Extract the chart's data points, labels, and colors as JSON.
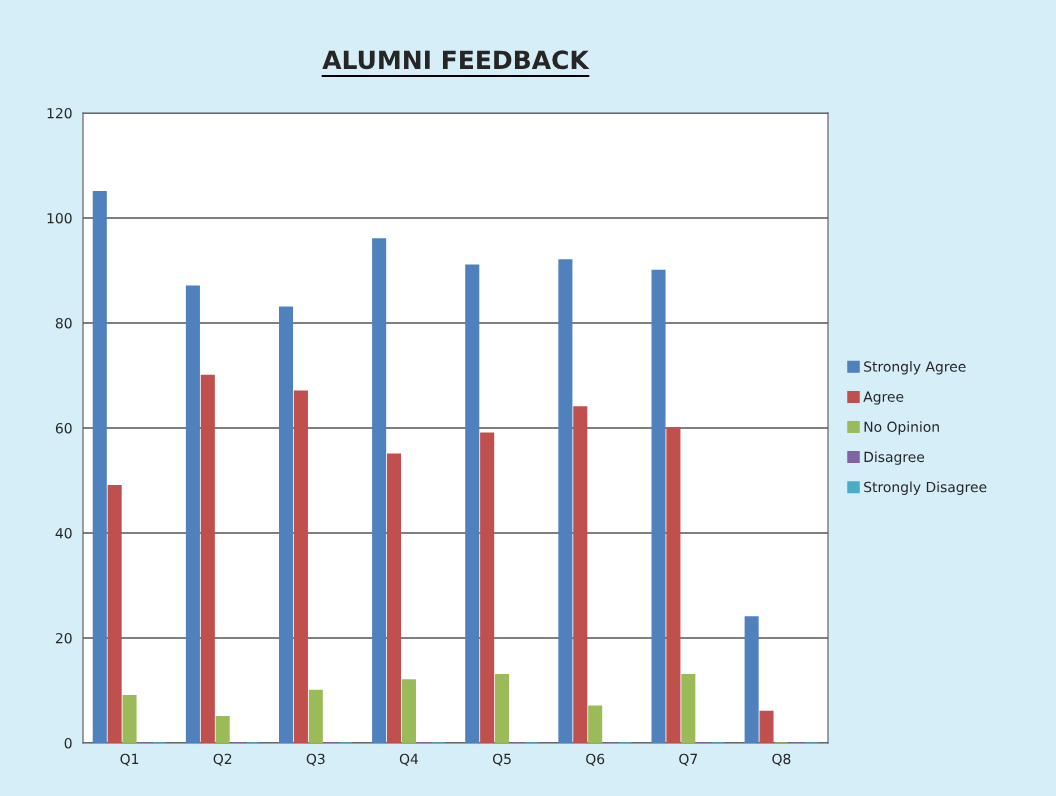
{
  "chart_data": {
    "type": "bar",
    "title": "ALUMNI FEEDBACK",
    "categories": [
      "Q1",
      "Q2",
      "Q3",
      "Q4",
      "Q5",
      "Q6",
      "Q7",
      "Q8"
    ],
    "series": [
      {
        "name": "Strongly Agree",
        "color": "#4f81bd",
        "values": [
          105,
          87,
          83,
          96,
          91,
          92,
          90,
          24
        ]
      },
      {
        "name": "Agree",
        "color": "#c0504d",
        "values": [
          49,
          70,
          67,
          55,
          59,
          64,
          60,
          6
        ]
      },
      {
        "name": "No Opinion",
        "color": "#9bbb59",
        "values": [
          9,
          5,
          10,
          12,
          13,
          7,
          13,
          0
        ]
      },
      {
        "name": "Disagree",
        "color": "#8064a2",
        "values": [
          0,
          0,
          0,
          0,
          0,
          0,
          0,
          0
        ]
      },
      {
        "name": "Strongly Disagree",
        "color": "#4bacc6",
        "values": [
          0,
          0,
          0,
          0,
          0,
          0,
          0,
          0
        ]
      }
    ],
    "ylim": [
      0,
      120
    ],
    "yticks": [
      0,
      20,
      40,
      60,
      80,
      100,
      120
    ],
    "grid": "y",
    "legend": "right"
  }
}
